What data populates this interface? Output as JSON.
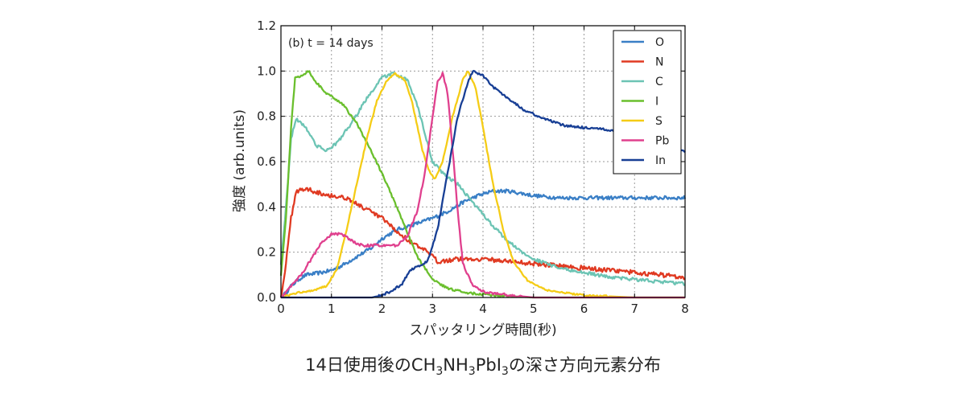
{
  "chart_data": {
    "type": "line",
    "annotation": "(b) t = 14 days",
    "xlabel": "スパッタリング時間(秒)",
    "ylabel": "強度 (arb.units)",
    "xlim": [
      0,
      8
    ],
    "ylim": [
      0,
      1.2
    ],
    "x_ticks": [
      "0",
      "1",
      "2",
      "3",
      "4",
      "5",
      "6",
      "7",
      "8"
    ],
    "y_ticks": [
      "0.0",
      "0.2",
      "0.4",
      "0.6",
      "0.8",
      "1.0",
      "1.2"
    ],
    "grid": true,
    "legend_position": "top-right",
    "caption": {
      "prefix": "14日使用後の",
      "f1": "CH",
      "s1": "3",
      "f2": "NH",
      "s2": "3",
      "f3": "PbI",
      "s3": "3",
      "suffix": "の深さ方向元素分布"
    },
    "series": [
      {
        "name": "O",
        "color": "#3a7fc6",
        "noise": 0.008,
        "points": [
          [
            0,
            0.0
          ],
          [
            0.1,
            0.02
          ],
          [
            0.2,
            0.05
          ],
          [
            0.35,
            0.08
          ],
          [
            0.5,
            0.1
          ],
          [
            0.8,
            0.11
          ],
          [
            1.0,
            0.12
          ],
          [
            1.2,
            0.14
          ],
          [
            1.5,
            0.18
          ],
          [
            1.8,
            0.22
          ],
          [
            2.0,
            0.26
          ],
          [
            2.3,
            0.3
          ],
          [
            2.6,
            0.32
          ],
          [
            3.0,
            0.35
          ],
          [
            3.3,
            0.38
          ],
          [
            3.6,
            0.42
          ],
          [
            3.9,
            0.45
          ],
          [
            4.2,
            0.47
          ],
          [
            4.5,
            0.47
          ],
          [
            5.0,
            0.45
          ],
          [
            5.5,
            0.44
          ],
          [
            6.0,
            0.44
          ],
          [
            6.5,
            0.44
          ],
          [
            7.0,
            0.44
          ],
          [
            7.5,
            0.44
          ],
          [
            8.0,
            0.44
          ]
        ]
      },
      {
        "name": "N",
        "color": "#e03a22",
        "noise": 0.01,
        "points": [
          [
            0,
            0.0
          ],
          [
            0.1,
            0.15
          ],
          [
            0.2,
            0.35
          ],
          [
            0.3,
            0.47
          ],
          [
            0.5,
            0.48
          ],
          [
            0.8,
            0.46
          ],
          [
            1.0,
            0.45
          ],
          [
            1.3,
            0.44
          ],
          [
            1.6,
            0.4
          ],
          [
            2.0,
            0.35
          ],
          [
            2.3,
            0.29
          ],
          [
            2.6,
            0.24
          ],
          [
            2.9,
            0.2
          ],
          [
            3.1,
            0.16
          ],
          [
            3.5,
            0.17
          ],
          [
            4.0,
            0.17
          ],
          [
            4.5,
            0.16
          ],
          [
            5.0,
            0.15
          ],
          [
            5.5,
            0.14
          ],
          [
            6.0,
            0.13
          ],
          [
            6.5,
            0.12
          ],
          [
            7.0,
            0.11
          ],
          [
            7.5,
            0.1
          ],
          [
            8.0,
            0.09
          ]
        ]
      },
      {
        "name": "C",
        "color": "#6cc4b4",
        "noise": 0.007,
        "points": [
          [
            0,
            0.15
          ],
          [
            0.1,
            0.4
          ],
          [
            0.2,
            0.7
          ],
          [
            0.3,
            0.79
          ],
          [
            0.5,
            0.75
          ],
          [
            0.7,
            0.67
          ],
          [
            0.9,
            0.65
          ],
          [
            1.1,
            0.68
          ],
          [
            1.4,
            0.77
          ],
          [
            1.7,
            0.88
          ],
          [
            2.0,
            0.97
          ],
          [
            2.2,
            0.99
          ],
          [
            2.5,
            0.96
          ],
          [
            2.7,
            0.85
          ],
          [
            2.9,
            0.68
          ],
          [
            3.0,
            0.6
          ],
          [
            3.2,
            0.55
          ],
          [
            3.5,
            0.5
          ],
          [
            3.8,
            0.42
          ],
          [
            4.1,
            0.34
          ],
          [
            4.4,
            0.27
          ],
          [
            4.7,
            0.21
          ],
          [
            5.0,
            0.17
          ],
          [
            5.5,
            0.13
          ],
          [
            6.0,
            0.11
          ],
          [
            6.5,
            0.09
          ],
          [
            7.0,
            0.08
          ],
          [
            7.5,
            0.07
          ],
          [
            8.0,
            0.06
          ]
        ]
      },
      {
        "name": "I",
        "color": "#6abf2d",
        "noise": 0.005,
        "points": [
          [
            0,
            0.1
          ],
          [
            0.1,
            0.35
          ],
          [
            0.2,
            0.75
          ],
          [
            0.28,
            0.97
          ],
          [
            0.4,
            0.98
          ],
          [
            0.55,
            1.0
          ],
          [
            0.7,
            0.95
          ],
          [
            0.9,
            0.9
          ],
          [
            1.2,
            0.86
          ],
          [
            1.5,
            0.77
          ],
          [
            1.8,
            0.64
          ],
          [
            2.1,
            0.5
          ],
          [
            2.4,
            0.34
          ],
          [
            2.7,
            0.18
          ],
          [
            3.0,
            0.08
          ],
          [
            3.3,
            0.04
          ],
          [
            3.7,
            0.02
          ],
          [
            4.2,
            0.01
          ],
          [
            5.0,
            0.0
          ],
          [
            8.0,
            0.0
          ]
        ]
      },
      {
        "name": "S",
        "color": "#f5cc16",
        "noise": 0.004,
        "points": [
          [
            0,
            0.0
          ],
          [
            0.3,
            0.02
          ],
          [
            0.6,
            0.03
          ],
          [
            0.9,
            0.05
          ],
          [
            1.1,
            0.12
          ],
          [
            1.3,
            0.3
          ],
          [
            1.5,
            0.5
          ],
          [
            1.7,
            0.7
          ],
          [
            1.9,
            0.87
          ],
          [
            2.1,
            0.96
          ],
          [
            2.25,
            0.99
          ],
          [
            2.45,
            0.96
          ],
          [
            2.6,
            0.86
          ],
          [
            2.8,
            0.65
          ],
          [
            2.95,
            0.55
          ],
          [
            3.05,
            0.52
          ],
          [
            3.2,
            0.6
          ],
          [
            3.4,
            0.8
          ],
          [
            3.6,
            0.96
          ],
          [
            3.7,
            1.0
          ],
          [
            3.85,
            0.93
          ],
          [
            4.0,
            0.75
          ],
          [
            4.2,
            0.5
          ],
          [
            4.4,
            0.3
          ],
          [
            4.6,
            0.16
          ],
          [
            4.9,
            0.07
          ],
          [
            5.3,
            0.03
          ],
          [
            6.0,
            0.01
          ],
          [
            7.0,
            0.0
          ],
          [
            8.0,
            0.0
          ]
        ]
      },
      {
        "name": "Pb",
        "color": "#e0408e",
        "noise": 0.006,
        "points": [
          [
            0,
            0.0
          ],
          [
            0.2,
            0.05
          ],
          [
            0.4,
            0.1
          ],
          [
            0.6,
            0.17
          ],
          [
            0.8,
            0.24
          ],
          [
            1.0,
            0.28
          ],
          [
            1.2,
            0.28
          ],
          [
            1.4,
            0.25
          ],
          [
            1.6,
            0.23
          ],
          [
            2.0,
            0.23
          ],
          [
            2.3,
            0.23
          ],
          [
            2.5,
            0.27
          ],
          [
            2.7,
            0.38
          ],
          [
            2.85,
            0.55
          ],
          [
            3.0,
            0.8
          ],
          [
            3.1,
            0.95
          ],
          [
            3.2,
            0.99
          ],
          [
            3.3,
            0.9
          ],
          [
            3.4,
            0.65
          ],
          [
            3.5,
            0.38
          ],
          [
            3.6,
            0.15
          ],
          [
            3.8,
            0.05
          ],
          [
            4.1,
            0.02
          ],
          [
            5.0,
            0.0
          ],
          [
            8.0,
            0.0
          ]
        ]
      },
      {
        "name": "In",
        "color": "#183f95",
        "noise": 0.005,
        "points": [
          [
            0,
            0.0
          ],
          [
            1.8,
            0.0
          ],
          [
            2.0,
            0.01
          ],
          [
            2.2,
            0.03
          ],
          [
            2.4,
            0.06
          ],
          [
            2.55,
            0.12
          ],
          [
            2.75,
            0.14
          ],
          [
            2.9,
            0.16
          ],
          [
            3.1,
            0.3
          ],
          [
            3.3,
            0.55
          ],
          [
            3.5,
            0.8
          ],
          [
            3.7,
            0.95
          ],
          [
            3.8,
            1.0
          ],
          [
            4.0,
            0.98
          ],
          [
            4.2,
            0.93
          ],
          [
            4.5,
            0.88
          ],
          [
            4.8,
            0.83
          ],
          [
            5.2,
            0.79
          ],
          [
            5.6,
            0.76
          ],
          [
            6.0,
            0.75
          ],
          [
            6.5,
            0.74
          ],
          [
            7.0,
            0.72
          ],
          [
            7.5,
            0.7
          ],
          [
            8.0,
            0.64
          ]
        ]
      }
    ]
  }
}
